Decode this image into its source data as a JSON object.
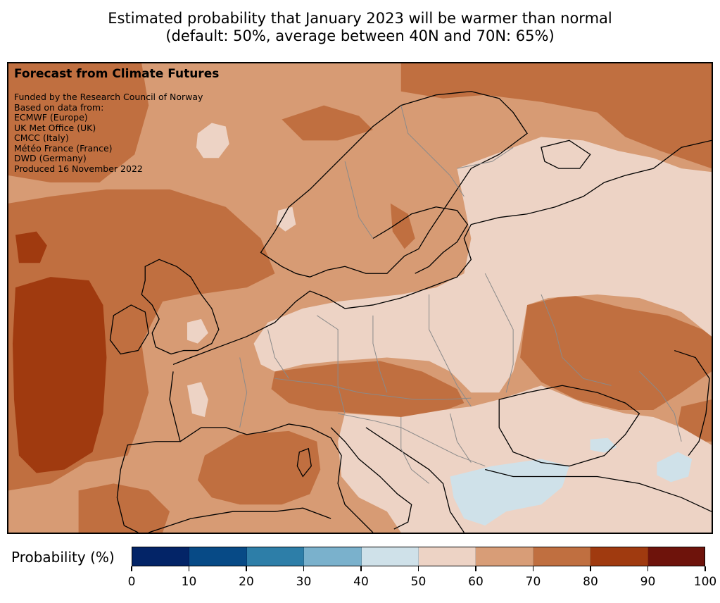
{
  "title": {
    "line1": "Estimated probability that January 2023 will be warmer than normal",
    "line2": "(default: 50%, average between 40N and 70N: 65%)"
  },
  "info": {
    "heading": "Forecast from Climate Futures",
    "lines": [
      "Funded by the Research Council of Norway",
      "Based on data from:",
      "ECMWF (Europe)",
      "UK Met Office (UK)",
      "CMCC (Italy)",
      "Météo France (France)",
      "DWD (Germany)",
      "Produced 16 November 2022"
    ]
  },
  "colorbar": {
    "label": "Probability (%)",
    "ticks": [
      "0",
      "10",
      "20",
      "30",
      "40",
      "50",
      "60",
      "70",
      "80",
      "90",
      "100"
    ],
    "colors": [
      "#032467",
      "#074a86",
      "#2d7ea8",
      "#7ab1cc",
      "#cfe1e9",
      "#edd3c5",
      "#d89d77",
      "#c06f40",
      "#a03a0f",
      "#6e130b"
    ]
  },
  "map": {
    "background_category": "60-70",
    "bins": [
      "40-50",
      "50-60",
      "60-70",
      "70-80",
      "80-90"
    ]
  }
}
